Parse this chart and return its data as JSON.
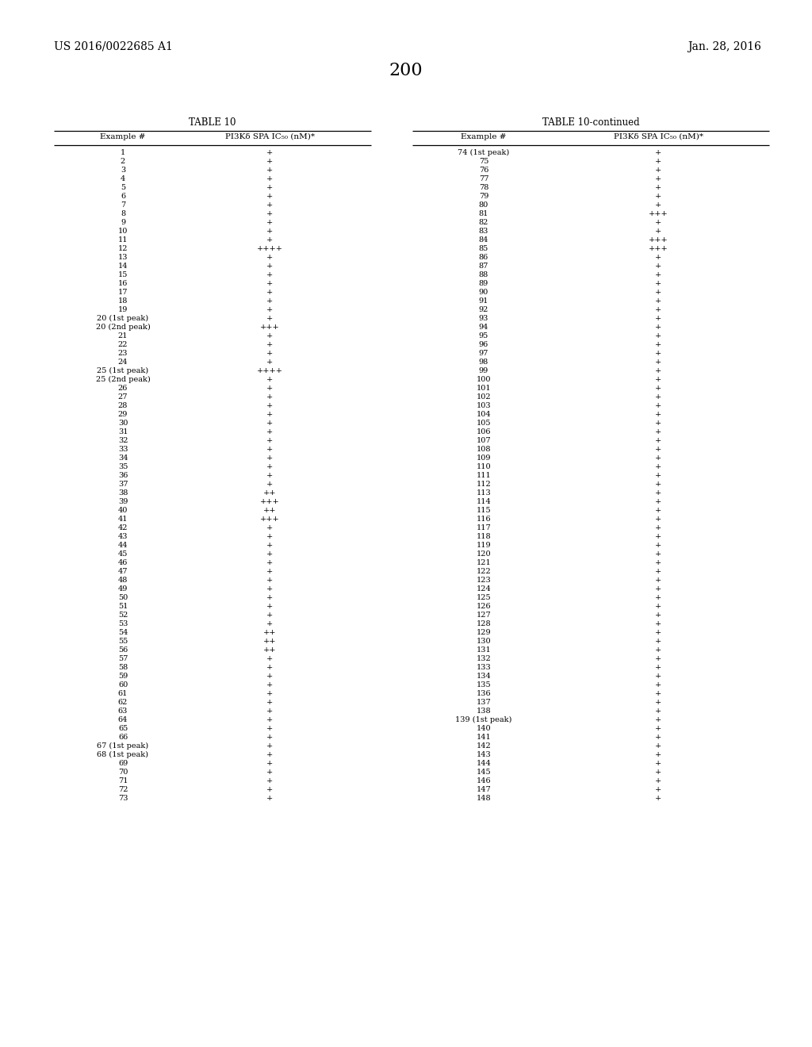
{
  "header_left": "US 2016/0022685 A1",
  "header_right": "Jan. 28, 2016",
  "page_number": "200",
  "table_title_left": "TABLE 10",
  "table_title_right": "TABLE 10-continued",
  "col1_header": "Example #",
  "col2_header": "PI3Kδ SPA IC₅₀ (nM)*",
  "col3_header": "Example #",
  "col4_header": "PI3Kδ SPA IC₅₀ (nM)*",
  "left_table": [
    [
      "1",
      "+"
    ],
    [
      "2",
      "+"
    ],
    [
      "3",
      "+"
    ],
    [
      "4",
      "+"
    ],
    [
      "5",
      "+"
    ],
    [
      "6",
      "+"
    ],
    [
      "7",
      "+"
    ],
    [
      "8",
      "+"
    ],
    [
      "9",
      "+"
    ],
    [
      "10",
      "+"
    ],
    [
      "11",
      "+"
    ],
    [
      "12",
      "++++"
    ],
    [
      "13",
      "+"
    ],
    [
      "14",
      "+"
    ],
    [
      "15",
      "+"
    ],
    [
      "16",
      "+"
    ],
    [
      "17",
      "+"
    ],
    [
      "18",
      "+"
    ],
    [
      "19",
      "+"
    ],
    [
      "20 (1st peak)",
      "+"
    ],
    [
      "20 (2nd peak)",
      "+++"
    ],
    [
      "21",
      "+"
    ],
    [
      "22",
      "+"
    ],
    [
      "23",
      "+"
    ],
    [
      "24",
      "+"
    ],
    [
      "25 (1st peak)",
      "++++"
    ],
    [
      "25 (2nd peak)",
      "+"
    ],
    [
      "26",
      "+"
    ],
    [
      "27",
      "+"
    ],
    [
      "28",
      "+"
    ],
    [
      "29",
      "+"
    ],
    [
      "30",
      "+"
    ],
    [
      "31",
      "+"
    ],
    [
      "32",
      "+"
    ],
    [
      "33",
      "+"
    ],
    [
      "34",
      "+"
    ],
    [
      "35",
      "+"
    ],
    [
      "36",
      "+"
    ],
    [
      "37",
      "+"
    ],
    [
      "38",
      "++"
    ],
    [
      "39",
      "+++"
    ],
    [
      "40",
      "++"
    ],
    [
      "41",
      "+++"
    ],
    [
      "42",
      "+"
    ],
    [
      "43",
      "+"
    ],
    [
      "44",
      "+"
    ],
    [
      "45",
      "+"
    ],
    [
      "46",
      "+"
    ],
    [
      "47",
      "+"
    ],
    [
      "48",
      "+"
    ],
    [
      "49",
      "+"
    ],
    [
      "50",
      "+"
    ],
    [
      "51",
      "+"
    ],
    [
      "52",
      "+"
    ],
    [
      "53",
      "+"
    ],
    [
      "54",
      "++"
    ],
    [
      "55",
      "++"
    ],
    [
      "56",
      "++"
    ],
    [
      "57",
      "+"
    ],
    [
      "58",
      "+"
    ],
    [
      "59",
      "+"
    ],
    [
      "60",
      "+"
    ],
    [
      "61",
      "+"
    ],
    [
      "62",
      "+"
    ],
    [
      "63",
      "+"
    ],
    [
      "64",
      "+"
    ],
    [
      "65",
      "+"
    ],
    [
      "66",
      "+"
    ],
    [
      "67 (1st peak)",
      "+"
    ],
    [
      "68 (1st peak)",
      "+"
    ],
    [
      "69",
      "+"
    ],
    [
      "70",
      "+"
    ],
    [
      "71",
      "+"
    ],
    [
      "72",
      "+"
    ],
    [
      "73",
      "+"
    ]
  ],
  "right_table": [
    [
      "74 (1st peak)",
      "+"
    ],
    [
      "75",
      "+"
    ],
    [
      "76",
      "+"
    ],
    [
      "77",
      "+"
    ],
    [
      "78",
      "+"
    ],
    [
      "79",
      "+"
    ],
    [
      "80",
      "+"
    ],
    [
      "81",
      "+++"
    ],
    [
      "82",
      "+"
    ],
    [
      "83",
      "+"
    ],
    [
      "84",
      "+++"
    ],
    [
      "85",
      "+++"
    ],
    [
      "86",
      "+"
    ],
    [
      "87",
      "+"
    ],
    [
      "88",
      "+"
    ],
    [
      "89",
      "+"
    ],
    [
      "90",
      "+"
    ],
    [
      "91",
      "+"
    ],
    [
      "92",
      "+"
    ],
    [
      "93",
      "+"
    ],
    [
      "94",
      "+"
    ],
    [
      "95",
      "+"
    ],
    [
      "96",
      "+"
    ],
    [
      "97",
      "+"
    ],
    [
      "98",
      "+"
    ],
    [
      "99",
      "+"
    ],
    [
      "100",
      "+"
    ],
    [
      "101",
      "+"
    ],
    [
      "102",
      "+"
    ],
    [
      "103",
      "+"
    ],
    [
      "104",
      "+"
    ],
    [
      "105",
      "+"
    ],
    [
      "106",
      "+"
    ],
    [
      "107",
      "+"
    ],
    [
      "108",
      "+"
    ],
    [
      "109",
      "+"
    ],
    [
      "110",
      "+"
    ],
    [
      "111",
      "+"
    ],
    [
      "112",
      "+"
    ],
    [
      "113",
      "+"
    ],
    [
      "114",
      "+"
    ],
    [
      "115",
      "+"
    ],
    [
      "116",
      "+"
    ],
    [
      "117",
      "+"
    ],
    [
      "118",
      "+"
    ],
    [
      "119",
      "+"
    ],
    [
      "120",
      "+"
    ],
    [
      "121",
      "+"
    ],
    [
      "122",
      "+"
    ],
    [
      "123",
      "+"
    ],
    [
      "124",
      "+"
    ],
    [
      "125",
      "+"
    ],
    [
      "126",
      "+"
    ],
    [
      "127",
      "+"
    ],
    [
      "128",
      "+"
    ],
    [
      "129",
      "+"
    ],
    [
      "130",
      "+"
    ],
    [
      "131",
      "+"
    ],
    [
      "132",
      "+"
    ],
    [
      "133",
      "+"
    ],
    [
      "134",
      "+"
    ],
    [
      "135",
      "+"
    ],
    [
      "136",
      "+"
    ],
    [
      "137",
      "+"
    ],
    [
      "138",
      "+"
    ],
    [
      "139 (1st peak)",
      "+"
    ],
    [
      "140",
      "+"
    ],
    [
      "141",
      "+"
    ],
    [
      "142",
      "+"
    ],
    [
      "143",
      "+"
    ],
    [
      "144",
      "+"
    ],
    [
      "145",
      "+"
    ],
    [
      "146",
      "+"
    ],
    [
      "147",
      "+"
    ],
    [
      "148",
      "+"
    ]
  ],
  "background_color": "#ffffff",
  "text_color": "#000000",
  "font_size": 7.0,
  "header_font_size": 10.0,
  "col_header_font_size": 7.5,
  "title_font_size": 8.5,
  "page_font_size": 16
}
